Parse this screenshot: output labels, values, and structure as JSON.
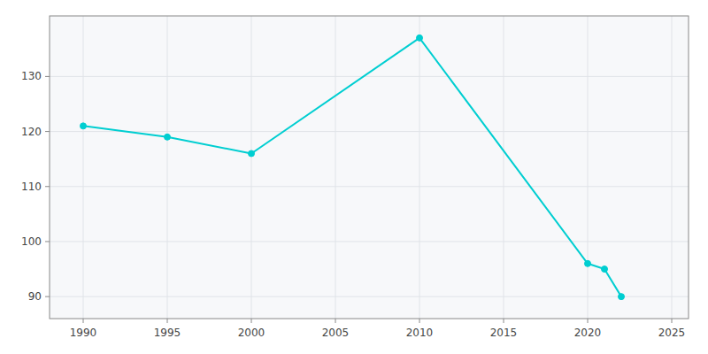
{
  "chart_data": {
    "type": "line",
    "x": [
      1990,
      1995,
      2000,
      2010,
      2020,
      2021,
      2022
    ],
    "values": [
      121,
      119,
      116,
      137,
      96,
      95,
      90
    ],
    "color": "#00CED1",
    "marker": "circle",
    "xlim": [
      1988,
      2026
    ],
    "ylim": [
      86,
      141
    ],
    "xticks": [
      1990,
      1995,
      2000,
      2005,
      2010,
      2015,
      2020,
      2025
    ],
    "yticks": [
      90,
      100,
      110,
      120,
      130
    ],
    "grid": true
  }
}
